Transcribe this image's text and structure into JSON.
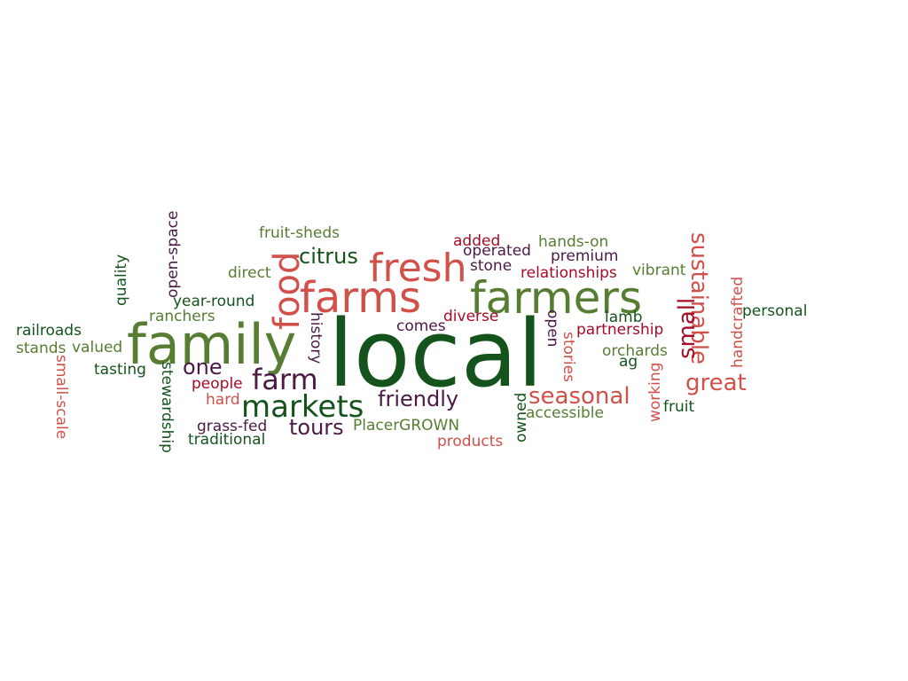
{
  "palette": {
    "dark_green": "#14541c",
    "olive_green": "#567d32",
    "coral": "#d2504a",
    "crimson": "#a60b27",
    "plum": "#4b1a45"
  },
  "words": [
    {
      "text": "local",
      "color": "dark_green"
    },
    {
      "text": "family",
      "color": "olive_green"
    },
    {
      "text": "farmers",
      "color": "olive_green"
    },
    {
      "text": "farms",
      "color": "coral"
    },
    {
      "text": "fresh",
      "color": "coral"
    },
    {
      "text": "food",
      "color": "coral"
    },
    {
      "text": "markets",
      "color": "dark_green"
    },
    {
      "text": "farm",
      "color": "plum"
    },
    {
      "text": "sustainable",
      "color": "coral"
    },
    {
      "text": "small",
      "color": "crimson"
    },
    {
      "text": "great",
      "color": "coral"
    },
    {
      "text": "seasonal",
      "color": "coral"
    },
    {
      "text": "friendly",
      "color": "plum"
    },
    {
      "text": "citrus",
      "color": "dark_green"
    },
    {
      "text": "tours",
      "color": "plum"
    },
    {
      "text": "one",
      "color": "plum"
    },
    {
      "text": "fruit-sheds",
      "color": "olive_green"
    },
    {
      "text": "added",
      "color": "crimson"
    },
    {
      "text": "hands-on",
      "color": "olive_green"
    },
    {
      "text": "operated",
      "color": "plum"
    },
    {
      "text": "premium",
      "color": "plum"
    },
    {
      "text": "stone",
      "color": "plum"
    },
    {
      "text": "relationships",
      "color": "crimson"
    },
    {
      "text": "vibrant",
      "color": "olive_green"
    },
    {
      "text": "direct",
      "color": "olive_green"
    },
    {
      "text": "open-space",
      "color": "plum"
    },
    {
      "text": "quality",
      "color": "dark_green"
    },
    {
      "text": "year-round",
      "color": "dark_green"
    },
    {
      "text": "ranchers",
      "color": "olive_green"
    },
    {
      "text": "railroads",
      "color": "dark_green"
    },
    {
      "text": "stands",
      "color": "olive_green"
    },
    {
      "text": "valued",
      "color": "olive_green"
    },
    {
      "text": "tasting",
      "color": "dark_green"
    },
    {
      "text": "small-scale",
      "color": "coral"
    },
    {
      "text": "people",
      "color": "crimson"
    },
    {
      "text": "hard",
      "color": "coral"
    },
    {
      "text": "stewardship",
      "color": "dark_green"
    },
    {
      "text": "history",
      "color": "plum"
    },
    {
      "text": "grass-fed",
      "color": "plum"
    },
    {
      "text": "traditional",
      "color": "dark_green"
    },
    {
      "text": "comes",
      "color": "plum"
    },
    {
      "text": "diverse",
      "color": "crimson"
    },
    {
      "text": "PlacerGROWN",
      "color": "olive_green"
    },
    {
      "text": "products",
      "color": "coral"
    },
    {
      "text": "open",
      "color": "plum"
    },
    {
      "text": "stories",
      "color": "coral"
    },
    {
      "text": "owned",
      "color": "dark_green"
    },
    {
      "text": "accessible",
      "color": "olive_green"
    },
    {
      "text": "lamb",
      "color": "dark_green"
    },
    {
      "text": "partnership",
      "color": "crimson"
    },
    {
      "text": "orchards",
      "color": "olive_green"
    },
    {
      "text": "ag",
      "color": "dark_green"
    },
    {
      "text": "working",
      "color": "coral"
    },
    {
      "text": "fruit",
      "color": "dark_green"
    },
    {
      "text": "handcrafted",
      "color": "coral"
    },
    {
      "text": "personal",
      "color": "dark_green"
    }
  ]
}
